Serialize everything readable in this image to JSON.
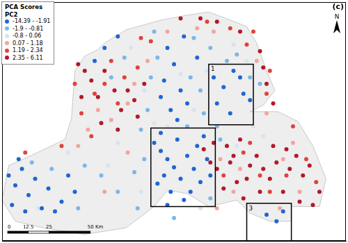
{
  "chart_data": {
    "type": "scatter",
    "title": "(c)",
    "legend": "top-left",
    "legend_title": "PCA Scores",
    "legend_subtitle": "PC2",
    "north_arrow": "N",
    "xlim": [
      0,
      208
    ],
    "ylim": [
      0,
      146
    ],
    "grid": false,
    "tick_labels": false,
    "scale_bar": {
      "ticks": [
        0,
        12.5,
        25,
        {
          "value": 50,
          "label": "50 Km"
        }
      ]
    },
    "land_outline": [
      [
        62,
        121
      ],
      [
        75,
        129
      ],
      [
        96,
        135
      ],
      [
        112,
        138
      ],
      [
        125,
        140
      ],
      [
        138,
        135
      ],
      [
        148,
        131
      ],
      [
        154,
        121
      ],
      [
        160,
        104
      ],
      [
        165,
        92
      ],
      [
        158,
        83
      ],
      [
        150,
        79
      ],
      [
        167,
        79
      ],
      [
        179,
        73
      ],
      [
        188,
        58
      ],
      [
        196,
        38
      ],
      [
        192,
        21
      ],
      [
        175,
        21
      ],
      [
        175,
        12
      ],
      [
        162,
        12
      ],
      [
        150,
        17
      ],
      [
        142,
        25
      ],
      [
        125,
        21
      ],
      [
        112,
        29
      ],
      [
        100,
        31
      ],
      [
        92,
        21
      ],
      [
        75,
        8
      ],
      [
        50,
        4
      ],
      [
        25,
        8
      ],
      [
        8,
        12
      ],
      [
        0,
        25
      ],
      [
        4,
        46
      ],
      [
        17,
        52
      ],
      [
        38,
        62
      ],
      [
        42,
        75
      ],
      [
        44,
        104
      ],
      [
        50,
        113
      ],
      [
        58,
        117
      ]
    ],
    "regions": [
      {
        "label": "1",
        "xlim": [
          125,
          152
        ],
        "ylim": [
          71,
          108
        ]
      },
      {
        "xlim": [
          90,
          129
        ],
        "ylim": [
          21,
          69
        ]
      },
      {
        "label": "3",
        "xlim": [
          148,
          175
        ],
        "ylim": [
          0,
          23
        ]
      }
    ],
    "series": [
      {
        "name": "-14.39 - -1.91",
        "color": "#1f66d1",
        "marker": "circle",
        "values": [
          [
            92,
            60
          ],
          [
            96,
            55
          ],
          [
            100,
            50
          ],
          [
            104,
            45
          ],
          [
            98,
            40
          ],
          [
            94,
            35
          ],
          [
            102,
            30
          ],
          [
            108,
            38
          ],
          [
            112,
            52
          ],
          [
            116,
            44
          ],
          [
            120,
            36
          ],
          [
            110,
            25
          ],
          [
            106,
            62
          ],
          [
            118,
            58
          ],
          [
            124,
            50
          ],
          [
            126,
            40
          ],
          [
            100,
            22
          ],
          [
            114,
            30
          ],
          [
            96,
            66
          ],
          [
            122,
            64
          ],
          [
            4,
            40
          ],
          [
            8,
            34
          ],
          [
            12,
            44
          ],
          [
            16,
            28
          ],
          [
            20,
            38
          ],
          [
            24,
            20
          ],
          [
            28,
            32
          ],
          [
            6,
            22
          ],
          [
            32,
            18
          ],
          [
            36,
            24
          ],
          [
            40,
            40
          ],
          [
            14,
            18
          ],
          [
            10,
            50
          ],
          [
            44,
            30
          ],
          [
            100,
            118
          ],
          [
            104,
            108
          ],
          [
            98,
            98
          ],
          [
            108,
            92
          ],
          [
            112,
            84
          ],
          [
            102,
            80
          ],
          [
            110,
            125
          ],
          [
            118,
            112
          ],
          [
            96,
            88
          ],
          [
            106,
            74
          ],
          [
            128,
            100
          ],
          [
            134,
            94
          ],
          [
            130,
            84
          ],
          [
            140,
            104
          ],
          [
            146,
            90
          ],
          [
            138,
            78
          ],
          [
            144,
            100
          ],
          [
            150,
            86
          ],
          [
            160,
            16
          ],
          [
            166,
            12
          ],
          [
            170,
            18
          ],
          [
            62,
            118
          ],
          [
            56,
            110
          ],
          [
            70,
            125
          ]
        ]
      },
      {
        "name": "-1.9 - -0.81",
        "color": "#7db6e8",
        "marker": "circle",
        "values": [
          [
            90,
            100
          ],
          [
            94,
            112
          ],
          [
            88,
            80
          ],
          [
            114,
            100
          ],
          [
            120,
            92
          ],
          [
            122,
            78
          ],
          [
            84,
            68
          ],
          [
            86,
            50
          ],
          [
            130,
            70
          ],
          [
            136,
            110
          ],
          [
            142,
            114
          ],
          [
            50,
            46
          ],
          [
            46,
            20
          ],
          [
            30,
            44
          ],
          [
            18,
            48
          ],
          [
            60,
            40
          ],
          [
            70,
            30
          ],
          [
            80,
            42
          ],
          [
            126,
            118
          ],
          [
            116,
            124
          ],
          [
            92,
            128
          ],
          [
            150,
            100
          ],
          [
            156,
            96
          ],
          [
            132,
            62
          ],
          [
            104,
            14
          ],
          [
            82,
            20
          ],
          [
            66,
            100
          ],
          [
            74,
            112
          ],
          [
            112,
            70
          ],
          [
            126,
            26
          ]
        ]
      },
      {
        "name": "-0.8 - 0.06",
        "color": "#d6e4f0",
        "marker": "circle",
        "values": [
          [
            86,
            92
          ],
          [
            92,
            72
          ],
          [
            116,
            80
          ],
          [
            124,
            104
          ],
          [
            148,
            110
          ],
          [
            152,
            70
          ],
          [
            142,
            58
          ],
          [
            70,
            60
          ],
          [
            64,
            46
          ],
          [
            40,
            54
          ],
          [
            22,
            20
          ],
          [
            84,
            30
          ],
          [
            140,
            120
          ],
          [
            108,
            102
          ],
          [
            120,
            20
          ],
          [
            78,
            118
          ],
          [
            158,
            64
          ],
          [
            100,
            70
          ]
        ]
      },
      {
        "name": "0.07 - 1.18",
        "color": "#f2a59e",
        "marker": "circle",
        "values": [
          [
            76,
            84
          ],
          [
            80,
            96
          ],
          [
            66,
            74
          ],
          [
            132,
            50
          ],
          [
            144,
            44
          ],
          [
            170,
            50
          ],
          [
            176,
            60
          ],
          [
            160,
            78
          ],
          [
            154,
            110
          ],
          [
            58,
            80
          ],
          [
            52,
            68
          ],
          [
            88,
            110
          ],
          [
            140,
            30
          ],
          [
            130,
            20
          ],
          [
            180,
            30
          ],
          [
            62,
            30
          ],
          [
            76,
            54
          ],
          [
            168,
            20
          ],
          [
            118,
            130
          ],
          [
            100,
            128
          ],
          [
            128,
            128
          ],
          [
            46,
            58
          ]
        ]
      },
      {
        "name": "1.19 - 2.34",
        "color": "#e0423b",
        "marker": "circle",
        "values": [
          [
            56,
            90
          ],
          [
            62,
            96
          ],
          [
            70,
            84
          ],
          [
            74,
            100
          ],
          [
            82,
            106
          ],
          [
            48,
            78
          ],
          [
            44,
            96
          ],
          [
            134,
            40
          ],
          [
            146,
            54
          ],
          [
            156,
            40
          ],
          [
            162,
            30
          ],
          [
            172,
            40
          ],
          [
            184,
            50
          ],
          [
            190,
            36
          ],
          [
            150,
            60
          ],
          [
            160,
            90
          ],
          [
            162,
            104
          ],
          [
            148,
            120
          ],
          [
            152,
            128
          ],
          [
            138,
            130
          ],
          [
            66,
            110
          ],
          [
            54,
            64
          ],
          [
            36,
            58
          ],
          [
            90,
            122
          ],
          [
            84,
            124
          ],
          [
            124,
            134
          ],
          [
            176,
            70
          ],
          [
            14,
            54
          ]
        ]
      },
      {
        "name": "2.35 - 6.11",
        "color": "#b3182a",
        "marker": "circle",
        "values": [
          [
            122,
            56
          ],
          [
            126,
            48
          ],
          [
            130,
            44
          ],
          [
            134,
            32
          ],
          [
            138,
            48
          ],
          [
            142,
            36
          ],
          [
            146,
            26
          ],
          [
            150,
            46
          ],
          [
            154,
            52
          ],
          [
            158,
            44
          ],
          [
            162,
            38
          ],
          [
            166,
            48
          ],
          [
            170,
            30
          ],
          [
            174,
            44
          ],
          [
            178,
            52
          ],
          [
            182,
            40
          ],
          [
            186,
            46
          ],
          [
            192,
            30
          ],
          [
            140,
            52
          ],
          [
            136,
            58
          ],
          [
            128,
            60
          ],
          [
            144,
            62
          ],
          [
            164,
            58
          ],
          [
            156,
            30
          ],
          [
            148,
            38
          ],
          [
            180,
            24
          ],
          [
            188,
            22
          ],
          [
            172,
            56
          ],
          [
            50,
            104
          ],
          [
            54,
            98
          ],
          [
            58,
            88
          ],
          [
            62,
            104
          ],
          [
            68,
            92
          ],
          [
            72,
            80
          ],
          [
            76,
            92
          ],
          [
            80,
            86
          ],
          [
            60,
            72
          ],
          [
            48,
            88
          ],
          [
            46,
            108
          ],
          [
            86,
            96
          ],
          [
            82,
            76
          ],
          [
            70,
            68
          ],
          [
            156,
            116
          ],
          [
            160,
            96
          ],
          [
            164,
            84
          ],
          [
            158,
            106
          ],
          [
            130,
            134
          ],
          [
            144,
            128
          ],
          [
            120,
            136
          ],
          [
            108,
            136
          ]
        ]
      }
    ]
  }
}
